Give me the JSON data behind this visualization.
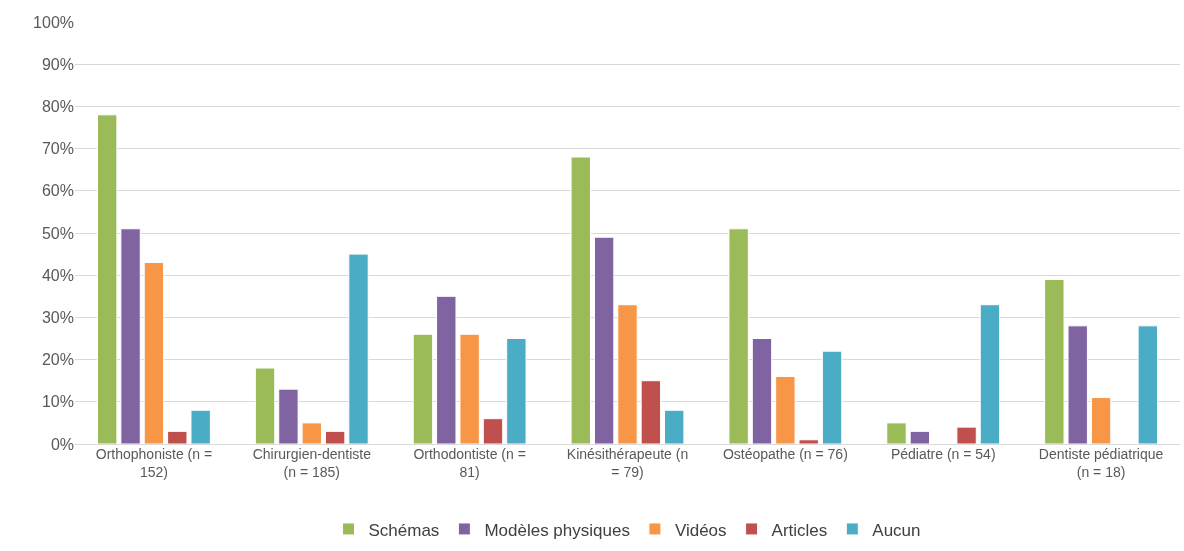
{
  "chart_data": {
    "type": "bar",
    "categories": [
      "Orthophoniste (n = 152)",
      "Chirurgien-dentiste (n = 185)",
      "Orthodontiste (n = 81)",
      "Kinésithérapeute (n = 79)",
      "Ostéopathe (n = 76)",
      "Pédiatre (n = 54)",
      "Dentiste pédiatrique (n = 18)"
    ],
    "series": [
      {
        "name": "Schémas",
        "color": "#9bbb59",
        "values": [
          78,
          18,
          26,
          68,
          51,
          5,
          39
        ]
      },
      {
        "name": "Modèles physiques",
        "color": "#8064a2",
        "values": [
          51,
          13,
          35,
          49,
          25,
          3,
          28
        ]
      },
      {
        "name": "Vidéos",
        "color": "#f79646",
        "values": [
          43,
          5,
          26,
          33,
          16,
          null,
          11
        ]
      },
      {
        "name": "Articles",
        "color": "#c0504d",
        "values": [
          3,
          3,
          6,
          15,
          1,
          4,
          null
        ]
      },
      {
        "name": "Aucun",
        "color": "#4bacc6",
        "values": [
          8,
          45,
          25,
          8,
          22,
          33,
          28
        ]
      }
    ],
    "ylim": [
      0,
      100
    ],
    "yticks": [
      {
        "value": 0,
        "label": "0%"
      },
      {
        "value": 10,
        "label": "10%"
      },
      {
        "value": 20,
        "label": "20%"
      },
      {
        "value": 30,
        "label": "30%"
      },
      {
        "value": 40,
        "label": "40%"
      },
      {
        "value": 50,
        "label": "50%"
      },
      {
        "value": 60,
        "label": "60%"
      },
      {
        "value": 70,
        "label": "70%"
      },
      {
        "value": 80,
        "label": "80%"
      },
      {
        "value": 90,
        "label": "90%"
      },
      {
        "value": 100,
        "label": "100%"
      }
    ],
    "grid": "y",
    "legend": "bottom"
  }
}
